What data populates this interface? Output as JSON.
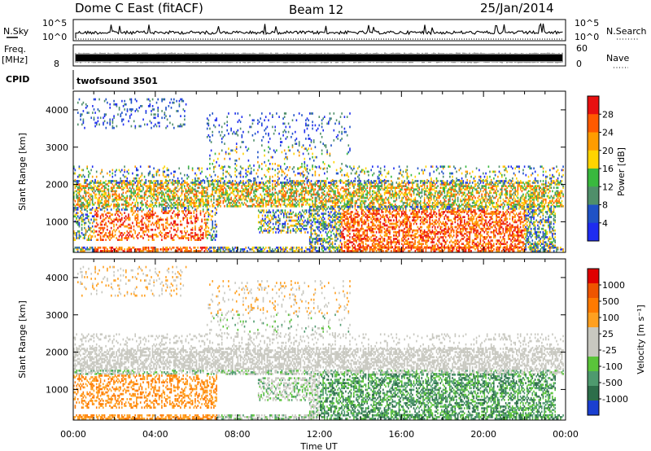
{
  "header": {
    "station": "Dome C East (fitACF)",
    "beam": "Beam 12",
    "date": "25/Jan/2014"
  },
  "colors": {
    "power_scale": [
      "#1e2cf0",
      "#1f52c6",
      "#4f8f6a",
      "#39b93e",
      "#ffd400",
      "#ff9c00",
      "#ff5a00",
      "#e81010"
    ],
    "velocity_scale": [
      "#1a3fd0",
      "#2d6e4a",
      "#4e9a6e",
      "#5ac43a",
      "#c8c8c0",
      "#c8c8c0",
      "#ffa020",
      "#ff7a00",
      "#ee5500",
      "#e00000"
    ],
    "ground_scatter": "#c8c8c0"
  },
  "chart_data": [
    {
      "type": "line",
      "name": "nsky-nsearch-panel",
      "left_label": "N.Sky",
      "right_label": "N.Search",
      "left_ticks": [
        "10^5",
        "10^0"
      ],
      "right_ticks": [
        "10^5",
        "10^0"
      ]
    },
    {
      "type": "line",
      "name": "freq-nave-panel",
      "left_label": "Freq.",
      "left_unit": "[MHz]",
      "right_label": "Nave",
      "left_ticks": [
        "8"
      ],
      "right_ticks": [
        "60",
        "0"
      ]
    },
    {
      "type": "table",
      "name": "cpid-panel",
      "label": "CPID",
      "value": "twofsound 3501"
    },
    {
      "type": "heatmap",
      "name": "power-panel",
      "ylabel": "Slant Range [km]",
      "ylim": [
        180,
        4500
      ],
      "yticks": [
        1000,
        2000,
        3000,
        4000
      ],
      "xlim": [
        0,
        24
      ],
      "xticks": [
        "00:00",
        "04:00",
        "08:00",
        "12:00",
        "16:00",
        "20:00",
        "00:00"
      ],
      "colorbar_label": "Power [dB]",
      "colorbar_ticks": [
        "28",
        "24",
        "20",
        "16",
        "12",
        "8",
        "4"
      ],
      "colorbar_range": [
        0,
        32
      ]
    },
    {
      "type": "heatmap",
      "name": "velocity-panel",
      "ylabel": "Slant Range [km]",
      "xlabel": "Time UT",
      "ylim": [
        180,
        4500
      ],
      "yticks": [
        1000,
        2000,
        3000,
        4000
      ],
      "xlim": [
        0,
        24
      ],
      "xticks": [
        "00:00",
        "04:00",
        "08:00",
        "12:00",
        "16:00",
        "20:00",
        "00:00"
      ],
      "colorbar_label": "Velocity [m s⁻¹]",
      "colorbar_ticks": [
        "1000",
        "500",
        "100",
        "25",
        "-25",
        "-100",
        "-500",
        "-1000"
      ]
    }
  ]
}
